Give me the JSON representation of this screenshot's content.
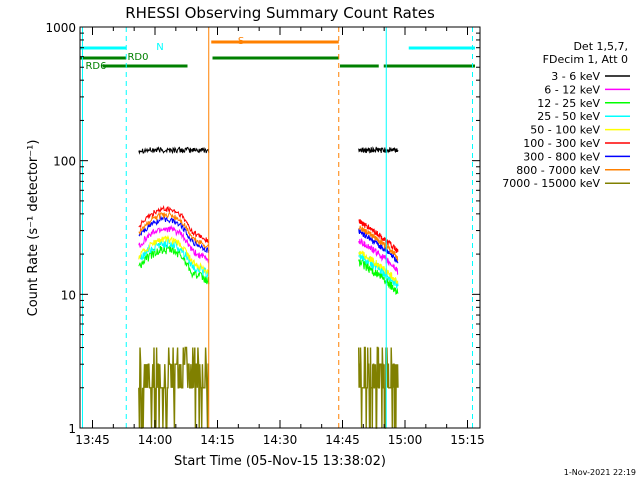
{
  "chart_data": {
    "type": "line",
    "title": "RHESSI Observing Summary Count Rates",
    "xlabel": "Start Time (05-Nov-15 13:38:02)",
    "ylabel": "Count Rate (s⁻¹ detector⁻¹)",
    "y_scale": "log",
    "ylim": [
      1,
      1000
    ],
    "xlim_minutes": [
      13.7,
      15.3
    ],
    "y_ticks": [
      {
        "value": 1,
        "label": "1"
      },
      {
        "value": 10,
        "label": "10"
      },
      {
        "value": 100,
        "label": "100"
      },
      {
        "value": 1000,
        "label": "1000"
      }
    ],
    "x_ticks": [
      {
        "value": 13.75,
        "label": "13:45"
      },
      {
        "value": 14.0,
        "label": "14:00"
      },
      {
        "value": 14.25,
        "label": "14:15"
      },
      {
        "value": 14.5,
        "label": "14:30"
      },
      {
        "value": 14.75,
        "label": "14:45"
      },
      {
        "value": 15.0,
        "label": "15:00"
      },
      {
        "value": 15.25,
        "label": "15:15"
      }
    ],
    "legend_header": [
      "Det 1,5,7,",
      "FDecim 1, Att 0"
    ],
    "legend_position": "right",
    "series": [
      {
        "name": "3 - 6 keV",
        "color": "#000000",
        "level": 120,
        "curve": "flat",
        "noise": 0.05
      },
      {
        "name": "6 - 12 keV",
        "color": "#ff00ff",
        "level": 23,
        "curve": "hump",
        "noise": 0.06
      },
      {
        "name": "12 - 25 keV",
        "color": "#00ff00",
        "level": 16,
        "curve": "hump",
        "noise": 0.08
      },
      {
        "name": "25 - 50 keV",
        "color": "#00ffff",
        "level": 18,
        "curve": "hump",
        "noise": 0.08
      },
      {
        "name": "50 - 100 keV",
        "color": "#ffff00",
        "level": 19,
        "curve": "hump",
        "noise": 0.06
      },
      {
        "name": "100 - 300 keV",
        "color": "#ff0000",
        "level": 32,
        "curve": "hump",
        "noise": 0.05
      },
      {
        "name": "300 - 800 keV",
        "color": "#0000ff",
        "level": 27,
        "curve": "hump",
        "noise": 0.05
      },
      {
        "name": "800 - 7000 keV",
        "color": "#ff8000",
        "level": 29,
        "curve": "hump",
        "noise": 0.05
      },
      {
        "name": "7000 - 15000 keV",
        "color": "#808000",
        "level": 2.2,
        "curve": "discrete",
        "noise": 0
      }
    ],
    "data_intervals": [
      [
        13.935,
        14.215
      ],
      [
        14.815,
        14.972
      ]
    ],
    "flags": [
      {
        "label": "N",
        "color": "#00ffff",
        "segments": [
          [
            13.7,
            13.885
          ],
          [
            15.015,
            15.28
          ]
        ]
      },
      {
        "label": "S",
        "color": "#ff8000",
        "segments": [
          [
            14.225,
            14.735
          ]
        ]
      },
      {
        "label": "RD0",
        "color": "#008000",
        "segments": [
          [
            13.7,
            13.885
          ],
          [
            14.23,
            14.735
          ]
        ]
      },
      {
        "label": "RD6",
        "color": "#008000",
        "segments": [
          [
            13.79,
            14.13
          ],
          [
            14.74,
            14.895
          ],
          [
            14.915,
            15.28
          ]
        ]
      }
    ],
    "vlines": [
      {
        "x": 13.71,
        "color": "#00ffff",
        "style": "solid"
      },
      {
        "x": 13.885,
        "color": "#00ffff",
        "style": "dashed"
      },
      {
        "x": 14.215,
        "color": "#ff8000",
        "style": "solid"
      },
      {
        "x": 14.735,
        "color": "#ff8000",
        "style": "dashed"
      },
      {
        "x": 14.925,
        "color": "#00ffff",
        "style": "solid"
      },
      {
        "x": 15.27,
        "color": "#00ffff",
        "style": "dashed"
      }
    ],
    "footer": "1-Nov-2021 22:19"
  }
}
